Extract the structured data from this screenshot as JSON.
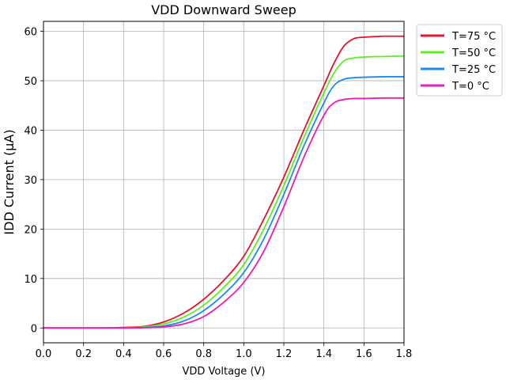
{
  "chart_data": {
    "type": "line",
    "title": "VDD Downward Sweep",
    "xlabel": "VDD Voltage (V)",
    "ylabel": "IDD Current (µA)",
    "xlim": [
      0.0,
      1.8
    ],
    "ylim": [
      -3,
      62
    ],
    "xticks": [
      0.0,
      0.2,
      0.4,
      0.6,
      0.8,
      1.0,
      1.2,
      1.4,
      1.6,
      1.8
    ],
    "yticks": [
      0,
      10,
      20,
      30,
      40,
      50,
      60
    ],
    "grid": true,
    "legend_position": "outside-top-right",
    "x": [
      0.0,
      0.1,
      0.2,
      0.3,
      0.4,
      0.5,
      0.6,
      0.7,
      0.8,
      0.9,
      1.0,
      1.1,
      1.2,
      1.3,
      1.4,
      1.45,
      1.5,
      1.55,
      1.6,
      1.7,
      1.8
    ],
    "series": [
      {
        "name": "T=75 °C",
        "color": "#e8102e",
        "values": [
          0,
          0,
          0,
          0,
          0.1,
          0.3,
          1.2,
          3.0,
          5.8,
          9.6,
          14.5,
          22.0,
          30.5,
          40.0,
          49.0,
          53.5,
          57.0,
          58.5,
          58.8,
          59.0,
          59.0
        ]
      },
      {
        "name": "T=50 °C",
        "color": "#5cf01a",
        "values": [
          0,
          0,
          0,
          0,
          0,
          0.2,
          0.8,
          2.2,
          4.6,
          8.2,
          12.8,
          20.0,
          28.8,
          38.5,
          47.5,
          51.5,
          54.0,
          54.6,
          54.8,
          54.9,
          55.0
        ]
      },
      {
        "name": "T=25 °C",
        "color": "#1a8cf0",
        "values": [
          0,
          0,
          0,
          0,
          0,
          0.1,
          0.4,
          1.4,
          3.5,
          6.8,
          11.2,
          18.0,
          27.0,
          36.8,
          45.5,
          49.0,
          50.3,
          50.6,
          50.7,
          50.8,
          50.8
        ]
      },
      {
        "name": "T=0 °C",
        "color": "#f01ab4",
        "values": [
          0,
          0,
          0,
          0,
          0,
          0.05,
          0.2,
          0.8,
          2.3,
          5.2,
          9.2,
          15.5,
          24.5,
          34.5,
          43.0,
          45.5,
          46.2,
          46.4,
          46.4,
          46.5,
          46.5
        ]
      }
    ]
  }
}
